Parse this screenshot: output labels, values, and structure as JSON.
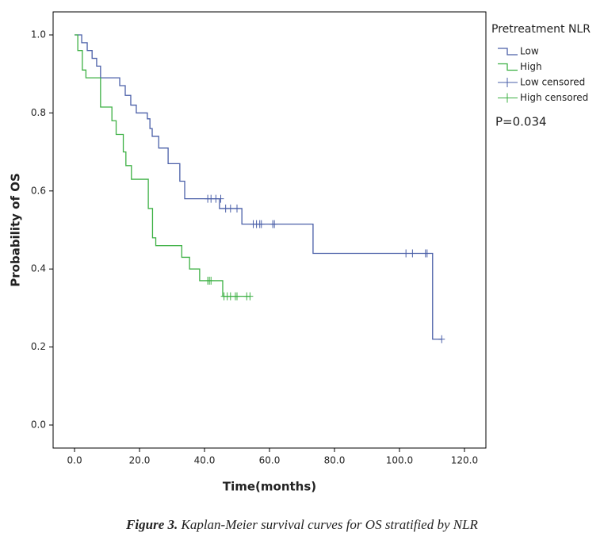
{
  "chart_data": {
    "type": "km",
    "xlabel": "Time(months)",
    "ylabel": "Probability of OS",
    "legend_title": "Pretreatment NLR",
    "annotation": "P=0.034",
    "caption_label": "Figure 3.",
    "caption_text": "Kaplan-Meier survival curves for OS stratified by NLR",
    "xlim": [
      -6.6,
      126.6
    ],
    "ylim": [
      -0.059,
      1.059
    ],
    "xticks": [
      {
        "value": 0,
        "label": "0.0"
      },
      {
        "value": 20,
        "label": "20.0"
      },
      {
        "value": 40,
        "label": "40.0"
      },
      {
        "value": 60,
        "label": "60.0"
      },
      {
        "value": 80,
        "label": "80.0"
      },
      {
        "value": 100,
        "label": "100.0"
      },
      {
        "value": 120,
        "label": "120.0"
      }
    ],
    "yticks": [
      {
        "value": 0,
        "label": "0.0"
      },
      0.2,
      0.4,
      0.6,
      0.8,
      {
        "value": 1,
        "label": "1.0"
      }
    ],
    "grid": false,
    "legend": "outside-right",
    "series": [
      {
        "name": "Low",
        "kind": "step",
        "color": "#4a5fa8",
        "x": [
          0,
          2.2,
          2.2,
          3.9,
          3.9,
          5.4,
          5.4,
          6.8,
          6.8,
          8.0,
          8.0,
          13.9,
          13.9,
          15.6,
          15.6,
          17.3,
          17.3,
          19,
          19,
          22.4,
          22.4,
          23.2,
          23.2,
          23.9,
          23.9,
          25.9,
          25.9,
          28.8,
          28.8,
          32.4,
          32.4,
          33.9,
          33.9,
          44.6,
          44.6,
          51.5,
          51.5,
          73.4,
          73.4,
          110.2,
          110.2,
          113
        ],
        "values": [
          1,
          1,
          0.98,
          0.98,
          0.96,
          0.96,
          0.94,
          0.94,
          0.92,
          0.92,
          0.89,
          0.89,
          0.87,
          0.87,
          0.845,
          0.845,
          0.82,
          0.82,
          0.8,
          0.8,
          0.785,
          0.785,
          0.76,
          0.76,
          0.74,
          0.74,
          0.71,
          0.71,
          0.67,
          0.67,
          0.625,
          0.625,
          0.58,
          0.58,
          0.555,
          0.555,
          0.515,
          0.515,
          0.44,
          0.44,
          0.22,
          0.22
        ]
      },
      {
        "name": "High",
        "kind": "step",
        "color": "#3cb043",
        "x": [
          0,
          1,
          1,
          2.4,
          2.4,
          3.5,
          3.5,
          8,
          8,
          11.5,
          11.5,
          12.8,
          12.8,
          15,
          15,
          15.8,
          15.8,
          17.5,
          17.5,
          22.7,
          22.7,
          24,
          24,
          25,
          25,
          33,
          33,
          35.4,
          35.4,
          38.5,
          38.5,
          45.6,
          45.6,
          54
        ],
        "values": [
          1,
          1,
          0.96,
          0.96,
          0.91,
          0.91,
          0.89,
          0.89,
          0.815,
          0.815,
          0.78,
          0.78,
          0.745,
          0.745,
          0.7,
          0.7,
          0.665,
          0.665,
          0.63,
          0.63,
          0.555,
          0.555,
          0.48,
          0.48,
          0.46,
          0.46,
          0.43,
          0.43,
          0.4,
          0.4,
          0.37,
          0.37,
          0.33,
          0.33
        ]
      },
      {
        "name": "Low censored",
        "kind": "censor",
        "color": "#4a5fa8",
        "x": [
          41,
          42,
          43.5,
          45,
          46.5,
          48,
          50,
          55,
          56,
          57,
          57.5,
          61,
          61.5,
          102,
          104,
          108,
          108.5,
          113
        ],
        "values": [
          0.58,
          0.58,
          0.58,
          0.58,
          0.555,
          0.555,
          0.555,
          0.515,
          0.515,
          0.515,
          0.515,
          0.515,
          0.515,
          0.44,
          0.44,
          0.44,
          0.44,
          0.22
        ]
      },
      {
        "name": "High censored",
        "kind": "censor",
        "color": "#3cb043",
        "x": [
          41,
          41.5,
          42,
          46,
          47,
          48,
          49.5,
          50,
          53,
          54
        ],
        "values": [
          0.37,
          0.37,
          0.37,
          0.33,
          0.33,
          0.33,
          0.33,
          0.33,
          0.33,
          0.33
        ]
      }
    ]
  }
}
